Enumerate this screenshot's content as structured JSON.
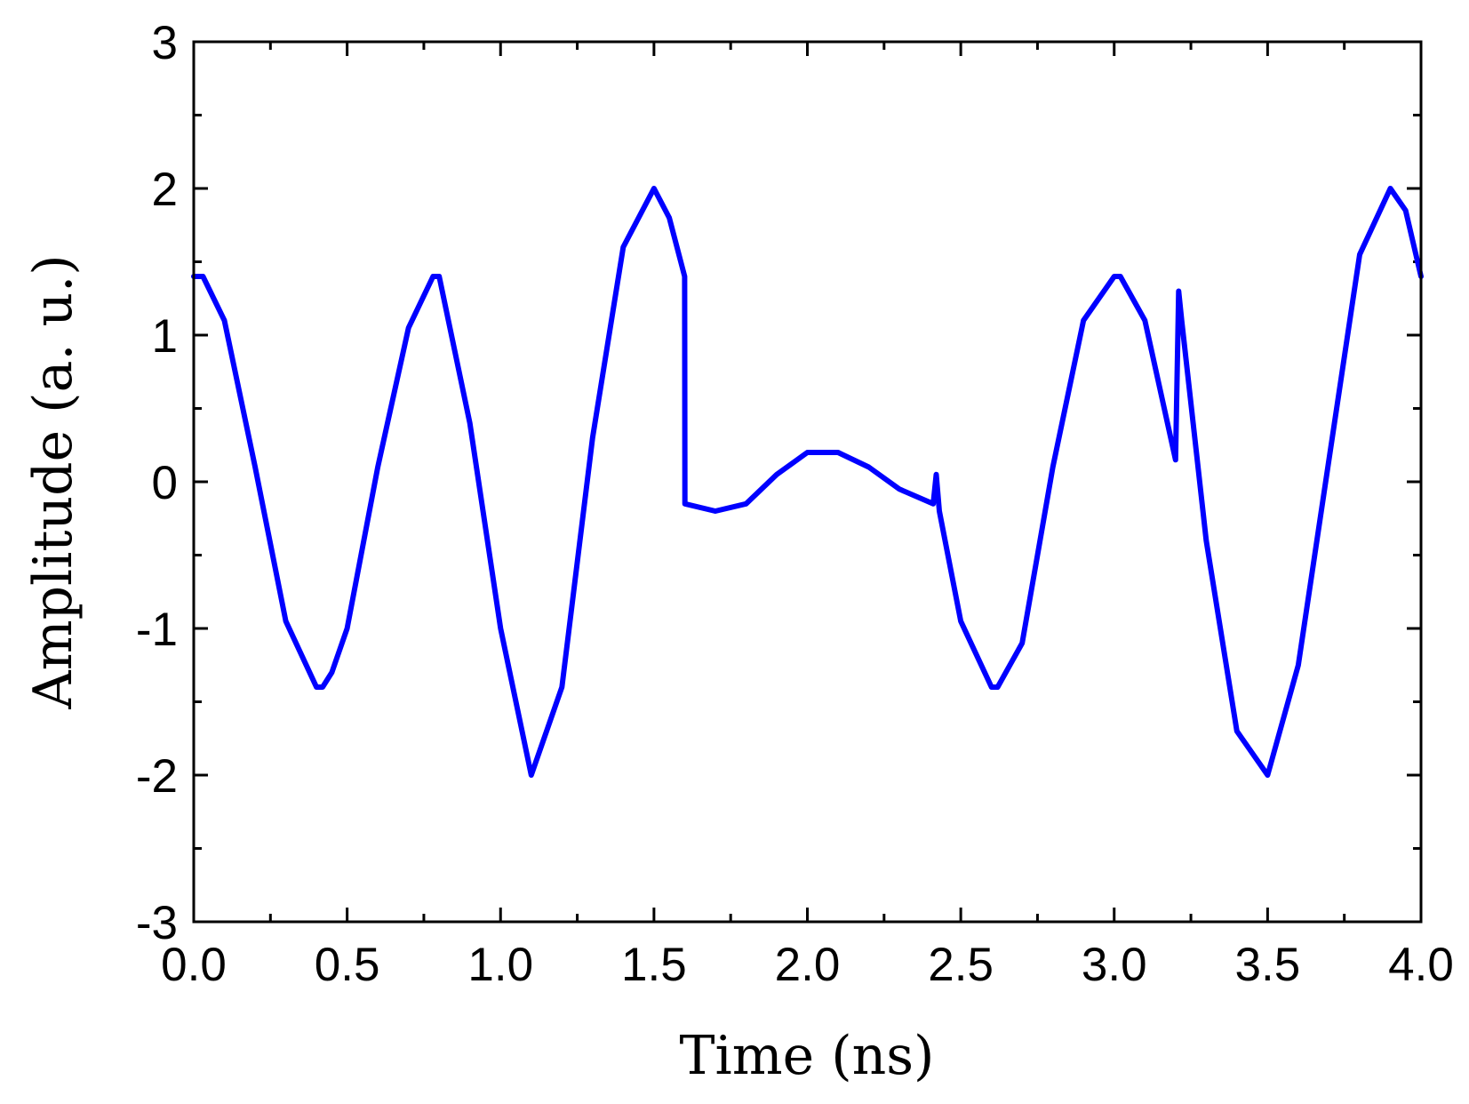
{
  "chart_data": {
    "type": "line",
    "title": "",
    "xlabel": "Time (ns)",
    "ylabel": "Amplitude (a. u.)",
    "xlim": [
      0.0,
      4.0
    ],
    "ylim": [
      -3,
      3
    ],
    "x_ticks": [
      0.0,
      0.5,
      1.0,
      1.5,
      2.0,
      2.5,
      3.0,
      3.5,
      4.0
    ],
    "x_tick_labels": [
      "0.0",
      "0.5",
      "1.0",
      "1.5",
      "2.0",
      "2.5",
      "3.0",
      "3.5",
      "4.0"
    ],
    "y_ticks": [
      -3,
      -2,
      -1,
      0,
      1,
      2,
      3
    ],
    "y_tick_labels": [
      "-3",
      "-2",
      "-1",
      "0",
      "1",
      "2",
      "3"
    ],
    "x_minor_step": 0.25,
    "y_minor_step": 0.5,
    "grid": false,
    "legend": "none",
    "line_color": "#0000FF",
    "series": [
      {
        "x": [
          0.0,
          0.03,
          0.1,
          0.2,
          0.3,
          0.4,
          0.42,
          0.45,
          0.5,
          0.6,
          0.7,
          0.78,
          0.8,
          0.82,
          0.9,
          1.0,
          1.1,
          1.2,
          1.3,
          1.4,
          1.5,
          1.55,
          1.6,
          1.601,
          1.7,
          1.8,
          1.9,
          2.0,
          2.1,
          2.2,
          2.3,
          2.41,
          2.42,
          2.43,
          2.5,
          2.6,
          2.62,
          2.7,
          2.8,
          2.9,
          3.0,
          3.02,
          3.1,
          3.2,
          3.21,
          3.22,
          3.3,
          3.4,
          3.5,
          3.6,
          3.7,
          3.8,
          3.9,
          3.95,
          4.0
        ],
        "y": [
          1.4,
          1.4,
          1.1,
          0.1,
          -0.95,
          -1.4,
          -1.4,
          -1.3,
          -1.0,
          0.1,
          1.05,
          1.4,
          1.4,
          1.2,
          0.4,
          -1.0,
          -2.0,
          -1.4,
          0.3,
          1.6,
          2.0,
          1.8,
          1.4,
          -0.15,
          -0.2,
          -0.15,
          0.05,
          0.2,
          0.2,
          0.1,
          -0.05,
          -0.15,
          0.05,
          -0.2,
          -0.95,
          -1.4,
          -1.4,
          -1.1,
          0.1,
          1.1,
          1.4,
          1.4,
          1.1,
          0.15,
          1.3,
          1.1,
          -0.4,
          -1.7,
          -2.0,
          -1.25,
          0.15,
          1.55,
          2.0,
          1.85,
          1.4
        ]
      }
    ]
  }
}
